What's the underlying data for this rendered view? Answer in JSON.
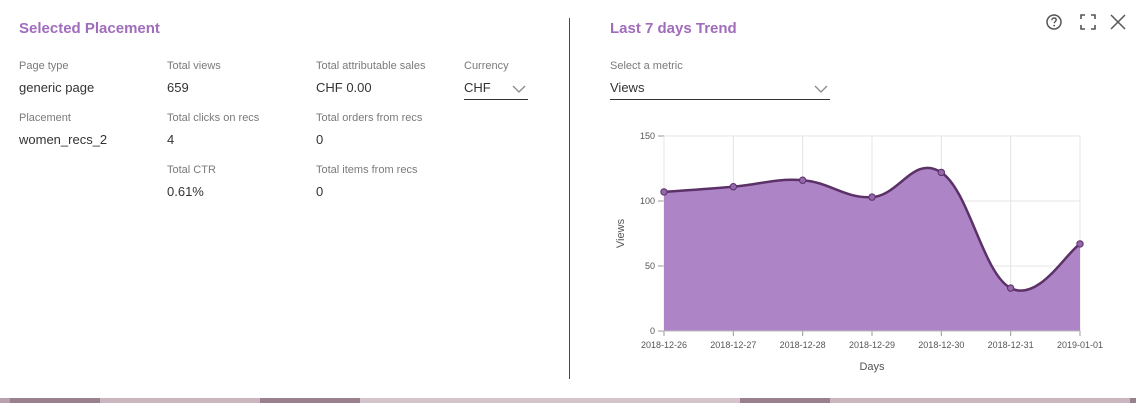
{
  "left": {
    "title": "Selected Placement",
    "page_type": {
      "label": "Page type",
      "value": "generic page"
    },
    "placement": {
      "label": "Placement",
      "value": "women_recs_2"
    },
    "total_views": {
      "label": "Total views",
      "value": "659"
    },
    "total_clicks": {
      "label": "Total clicks on recs",
      "value": "4"
    },
    "total_ctr": {
      "label": "Total CTR",
      "value": "0.61%"
    },
    "total_sales": {
      "label": "Total attributable sales",
      "value": "CHF 0.00"
    },
    "total_orders": {
      "label": "Total orders from recs",
      "value": "0"
    },
    "total_items": {
      "label": "Total items from recs",
      "value": "0"
    },
    "currency": {
      "label": "Currency",
      "value": "CHF"
    }
  },
  "right": {
    "title": "Last 7 days Trend",
    "metric": {
      "label": "Select a metric",
      "value": "Views"
    }
  },
  "toolbar": {
    "help_icon": "help-circle-icon",
    "fullscreen_icon": "fullscreen-icon",
    "close_icon": "close-icon"
  },
  "colors": {
    "accent": "#a06cbc",
    "area_fill": "#ad85c6",
    "line": "#5b3168",
    "divider": "#5a3a6a"
  },
  "chart_data": {
    "type": "area",
    "categories": [
      "2018-12-26",
      "2018-12-27",
      "2018-12-28",
      "2018-12-29",
      "2018-12-30",
      "2018-12-31",
      "2019-01-01"
    ],
    "series": [
      {
        "values": [
          107,
          111,
          116,
          103,
          122,
          33,
          67
        ]
      }
    ],
    "xlabel": "Days",
    "ylabel": "Views",
    "ylim": [
      0,
      150
    ],
    "yticks": [
      "0",
      "50",
      "100",
      "150"
    ],
    "grid": true,
    "smooth": true
  }
}
